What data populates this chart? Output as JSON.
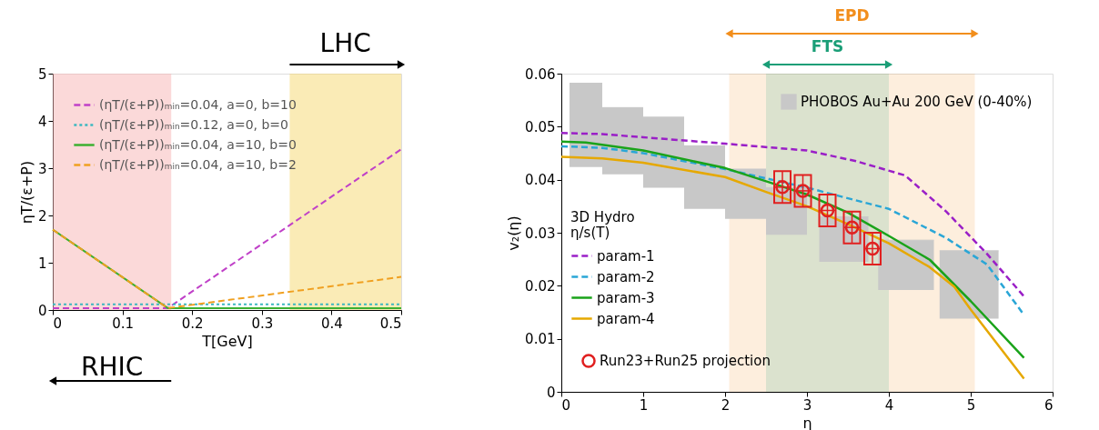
{
  "chart_data": [
    {
      "type": "line",
      "xlabel": "T[GeV]",
      "ylabel": "ηT/(ε+P)",
      "xlim": [
        0,
        0.5
      ],
      "ylim": [
        0,
        5
      ],
      "xticks": [
        0,
        0.1,
        0.2,
        0.3,
        0.4,
        0.5
      ],
      "yticks": [
        0,
        1,
        2,
        3,
        4,
        5
      ],
      "grid": false,
      "legend": "top left",
      "bands": [
        {
          "axis": "x",
          "from": 0,
          "to": 0.17,
          "label": "RHIC",
          "color": "#f8b4b4"
        },
        {
          "axis": "x",
          "from": 0.34,
          "to": 0.5,
          "label": "LHC",
          "color": "#f5d76e"
        }
      ],
      "series": [
        {
          "name": "(ηT/(ε+P))ₘᵢₙ=0.04, a=0, b=10",
          "color": "#c040c8",
          "line_style": "dashed",
          "x": [
            0,
            0.165,
            0.5
          ],
          "values": [
            0.04,
            0.04,
            3.4
          ]
        },
        {
          "name": "(ηT/(ε+P))ₘᵢₙ=0.12, a=0, b=0",
          "color": "#3cb8c0",
          "line_style": "dotted",
          "x": [
            0,
            0.5
          ],
          "values": [
            0.12,
            0.12
          ]
        },
        {
          "name": "(ηT/(ε+P))ₘᵢₙ=0.04, a=10, b=0",
          "color": "#3cb030",
          "line_style": "solid",
          "x": [
            0,
            0.165,
            0.5
          ],
          "values": [
            1.7,
            0.04,
            0.04
          ]
        },
        {
          "name": "(ηT/(ε+P))ₘᵢₙ=0.04, a=10, b=2",
          "color": "#f0a020",
          "line_style": "dashed",
          "x": [
            0,
            0.165,
            0.5
          ],
          "values": [
            1.7,
            0.04,
            0.7
          ]
        }
      ]
    },
    {
      "type": "line",
      "xlabel": "η",
      "ylabel": "v₂(η)",
      "legend_title": "3D Hydro\nη/s(T)",
      "xlim": [
        0,
        6
      ],
      "ylim": [
        0,
        0.06
      ],
      "xticks": [
        0,
        1,
        2,
        3,
        4,
        5,
        6
      ],
      "yticks": [
        0,
        0.01,
        0.02,
        0.03,
        0.04,
        0.05,
        0.06
      ],
      "grid": false,
      "legend": "left",
      "bands": [
        {
          "axis": "x",
          "from": 2.05,
          "to": 5.05,
          "label": "EPD",
          "color": "#f28e1c"
        },
        {
          "axis": "x",
          "from": 2.5,
          "to": 4.0,
          "label": "FTS",
          "color": "#1a9e77"
        }
      ],
      "series": [
        {
          "name": "PHOBOS Au+Au 200 GeV (0-40%)",
          "type": "bar",
          "color": "#c8c8c8",
          "x": [
            0.3,
            0.75,
            1.25,
            1.75,
            2.25,
            2.75,
            3.45,
            4.21,
            4.98
          ],
          "base": [
            0.0424,
            0.041,
            0.0385,
            0.0345,
            0.0326,
            0.0296,
            0.0245,
            0.0192,
            0.0138
          ],
          "values": [
            0.0158,
            0.0126,
            0.0133,
            0.0119,
            0.0094,
            0.0089,
            0.0085,
            0.0094,
            0.0128
          ],
          "xerrors": [
            0.2,
            0.25,
            0.25,
            0.25,
            0.25,
            0.25,
            0.3,
            0.34,
            0.36
          ]
        },
        {
          "name": "param-1",
          "type": "line",
          "color": "#9a1fc7",
          "line_style": "dashed",
          "x": [
            0,
            0.5,
            1,
            2,
            3,
            3.6,
            4.2,
            4.7,
            5.2,
            5.65
          ],
          "values": [
            0.0488,
            0.0486,
            0.048,
            0.0468,
            0.0455,
            0.0435,
            0.0408,
            0.034,
            0.026,
            0.018
          ]
        },
        {
          "name": "param-2",
          "type": "line",
          "color": "#2aa6d6",
          "line_style": "dashed",
          "x": [
            0,
            0.5,
            1,
            2,
            3,
            4,
            4.7,
            5.2,
            5.65
          ],
          "values": [
            0.0463,
            0.046,
            0.045,
            0.042,
            0.0385,
            0.0345,
            0.029,
            0.024,
            0.0145
          ]
        },
        {
          "name": "param-3",
          "type": "line",
          "color": "#1aa31a",
          "line_style": "solid",
          "x": [
            0,
            0.3,
            1,
            2,
            2.5,
            3,
            3.5,
            4,
            4.5,
            5,
            5.65
          ],
          "values": [
            0.0472,
            0.047,
            0.0455,
            0.0422,
            0.0397,
            0.0372,
            0.0338,
            0.0294,
            0.0249,
            0.0171,
            0.0064
          ]
        },
        {
          "name": "param-4",
          "type": "line",
          "color": "#e6a800",
          "line_style": "solid",
          "x": [
            0,
            0.5,
            1,
            2,
            2.5,
            3,
            3.5,
            4,
            4.5,
            4.8,
            5,
            5.65
          ],
          "values": [
            0.0443,
            0.044,
            0.0432,
            0.0405,
            0.0377,
            0.035,
            0.0316,
            0.028,
            0.0235,
            0.0198,
            0.0155,
            0.0025
          ]
        },
        {
          "name": "Run23+Run25 projection",
          "type": "scatter",
          "marker": "circle",
          "color": "#e02020",
          "x": [
            2.7,
            2.95,
            3.25,
            3.55,
            3.8
          ],
          "values": [
            0.0386,
            0.0379,
            0.0342,
            0.031,
            0.027
          ],
          "errors": [
            0.003,
            0.003,
            0.003,
            0.003,
            0.003
          ],
          "xerrors": [
            0.1,
            0.1,
            0.1,
            0.1,
            0.1
          ]
        }
      ]
    }
  ]
}
